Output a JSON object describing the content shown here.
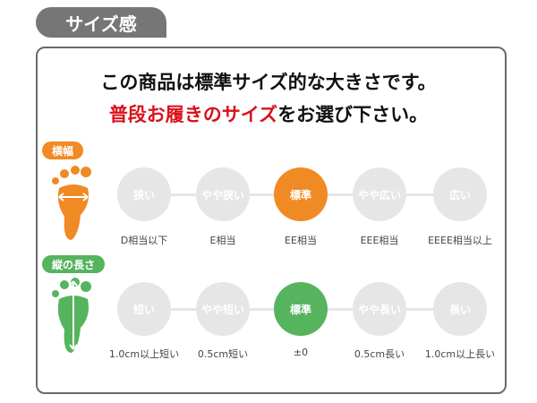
{
  "section_title": "サイズ感",
  "headline_1": "この商品は標準サイズ的な大きさです。",
  "headline_2_red": "普段お履きのサイズ",
  "headline_2_rest": "をお選び下さい。",
  "colors": {
    "width_accent": "#f08a24",
    "length_accent": "#56b35e",
    "inactive": "#e6e6e6",
    "red": "#d9121b"
  },
  "width": {
    "label": "横幅",
    "icon": "foot-width-icon",
    "selected": 2,
    "options": [
      {
        "label": "狭い",
        "sub": "D相当以下"
      },
      {
        "label": "やや狭い",
        "sub": "E相当"
      },
      {
        "label": "標準",
        "sub": "EE相当"
      },
      {
        "label": "やや広い",
        "sub": "EEE相当"
      },
      {
        "label": "広い",
        "sub": "EEEE相当以上"
      }
    ]
  },
  "length": {
    "label": "縦の長さ",
    "icon": "foot-length-icon",
    "selected": 2,
    "options": [
      {
        "label": "短い",
        "sub": "1.0cm以上短い"
      },
      {
        "label": "やや短い",
        "sub": "0.5cm短い"
      },
      {
        "label": "標準",
        "sub": "±0"
      },
      {
        "label": "やや長い",
        "sub": "0.5cm長い"
      },
      {
        "label": "長い",
        "sub": "1.0cm以上長い"
      }
    ]
  }
}
